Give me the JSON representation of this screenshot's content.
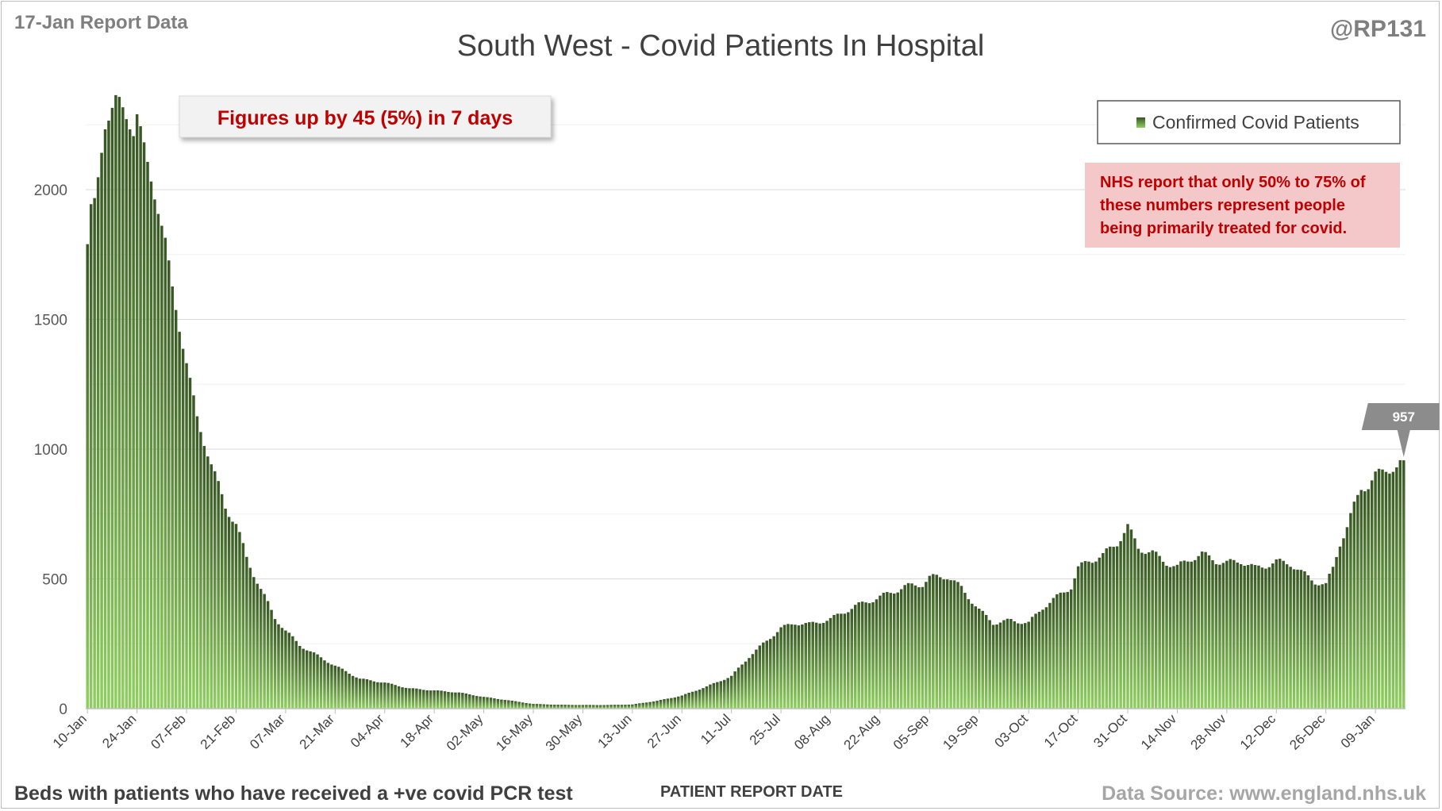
{
  "report_label": "17-Jan Report Data",
  "handle": "@RP131",
  "footer": {
    "left": "Beds with patients who have received a +ve covid PCR test",
    "source": "Data Source: www.england.nhs.uk"
  },
  "annotation": "Figures up by 45 (5%) in 7 days",
  "note_lines": [
    "NHS report that only 50% to 75% of",
    "these numbers represent people",
    "being primarily treated for covid."
  ],
  "callout": "957",
  "colors": {
    "bar_dark": "#375623",
    "bar_light": "#8fcf5f",
    "annotation": "#c00000",
    "note_bg": "#f4c7c9",
    "callout_bg": "#8c8c8c"
  },
  "chart_data": {
    "type": "bar",
    "title": "South West - Covid Patients In Hospital",
    "xlabel": "PATIENT REPORT DATE",
    "ylabel": "",
    "ylim": [
      0,
      2400
    ],
    "yticks": [
      0,
      500,
      1000,
      1500,
      2000
    ],
    "grid": true,
    "legend_position": "top-right",
    "x_start": "2021-01-10",
    "x_end": "2022-01-17",
    "xtick_labels": [
      "10-Jan",
      "24-Jan",
      "07-Feb",
      "21-Feb",
      "07-Mar",
      "21-Mar",
      "04-Apr",
      "18-Apr",
      "02-May",
      "16-May",
      "30-May",
      "13-Jun",
      "27-Jun",
      "11-Jul",
      "25-Jul",
      "08-Aug",
      "22-Aug",
      "05-Sep",
      "19-Sep",
      "03-Oct",
      "17-Oct",
      "31-Oct",
      "14-Nov",
      "28-Nov",
      "12-Dec",
      "26-Dec",
      "09-Jan"
    ],
    "series": [
      {
        "name": "Confirmed Covid Patients",
        "anchors": [
          [
            "2021-01-10",
            1790
          ],
          [
            "2021-01-11",
            1930
          ],
          [
            "2021-01-12",
            1950
          ],
          [
            "2021-01-13",
            2040
          ],
          [
            "2021-01-14",
            2150
          ],
          [
            "2021-01-15",
            2250
          ],
          [
            "2021-01-16",
            2280
          ],
          [
            "2021-01-18",
            2350
          ],
          [
            "2021-01-19",
            2340
          ],
          [
            "2021-01-21",
            2280
          ],
          [
            "2021-01-23",
            2220
          ],
          [
            "2021-01-24",
            2290
          ],
          [
            "2021-01-25",
            2230
          ],
          [
            "2021-01-27",
            2100
          ],
          [
            "2021-01-30",
            1920
          ],
          [
            "2021-02-01",
            1800
          ],
          [
            "2021-02-03",
            1620
          ],
          [
            "2021-02-05",
            1470
          ],
          [
            "2021-02-07",
            1330
          ],
          [
            "2021-02-10",
            1120
          ],
          [
            "2021-02-14",
            940
          ],
          [
            "2021-02-18",
            780
          ],
          [
            "2021-02-21",
            710
          ],
          [
            "2021-02-24",
            580
          ],
          [
            "2021-02-28",
            460
          ],
          [
            "2021-03-04",
            350
          ],
          [
            "2021-03-07",
            300
          ],
          [
            "2021-03-11",
            245
          ],
          [
            "2021-03-14",
            220
          ],
          [
            "2021-03-21",
            165
          ],
          [
            "2021-03-28",
            115
          ],
          [
            "2021-04-04",
            100
          ],
          [
            "2021-04-11",
            78
          ],
          [
            "2021-04-18",
            70
          ],
          [
            "2021-04-25",
            62
          ],
          [
            "2021-05-02",
            45
          ],
          [
            "2021-05-09",
            32
          ],
          [
            "2021-05-16",
            18
          ],
          [
            "2021-05-23",
            15
          ],
          [
            "2021-05-30",
            14
          ],
          [
            "2021-06-06",
            14
          ],
          [
            "2021-06-13",
            16
          ],
          [
            "2021-06-20",
            30
          ],
          [
            "2021-06-27",
            50
          ],
          [
            "2021-07-04",
            85
          ],
          [
            "2021-07-11",
            125
          ],
          [
            "2021-07-16",
            200
          ],
          [
            "2021-07-20",
            250
          ],
          [
            "2021-07-25",
            310
          ],
          [
            "2021-07-29",
            330
          ],
          [
            "2021-08-02",
            325
          ],
          [
            "2021-08-08",
            345
          ],
          [
            "2021-08-15",
            395
          ],
          [
            "2021-08-22",
            430
          ],
          [
            "2021-08-29",
            470
          ],
          [
            "2021-09-03",
            480
          ],
          [
            "2021-09-05",
            505
          ],
          [
            "2021-09-10",
            510
          ],
          [
            "2021-09-14",
            465
          ],
          [
            "2021-09-19",
            380
          ],
          [
            "2021-09-23",
            330
          ],
          [
            "2021-09-28",
            340
          ],
          [
            "2021-10-03",
            330
          ],
          [
            "2021-10-07",
            390
          ],
          [
            "2021-10-12",
            440
          ],
          [
            "2021-10-15",
            470
          ],
          [
            "2021-10-17",
            540
          ],
          [
            "2021-10-20",
            570
          ],
          [
            "2021-10-24",
            590
          ],
          [
            "2021-10-28",
            640
          ],
          [
            "2021-10-31",
            700
          ],
          [
            "2021-11-03",
            620
          ],
          [
            "2021-11-07",
            600
          ],
          [
            "2021-11-10",
            570
          ],
          [
            "2021-11-14",
            545
          ],
          [
            "2021-11-18",
            580
          ],
          [
            "2021-11-21",
            595
          ],
          [
            "2021-11-25",
            570
          ],
          [
            "2021-11-28",
            560
          ],
          [
            "2021-12-02",
            570
          ],
          [
            "2021-12-06",
            540
          ],
          [
            "2021-12-12",
            565
          ],
          [
            "2021-12-16",
            560
          ],
          [
            "2021-12-19",
            525
          ],
          [
            "2021-12-23",
            490
          ],
          [
            "2021-12-26",
            475
          ],
          [
            "2021-12-28",
            540
          ],
          [
            "2021-12-30",
            640
          ],
          [
            "2022-01-01",
            700
          ],
          [
            "2022-01-03",
            780
          ],
          [
            "2022-01-05",
            850
          ],
          [
            "2022-01-07",
            860
          ],
          [
            "2022-01-09",
            900
          ],
          [
            "2022-01-12",
            920
          ],
          [
            "2022-01-15",
            930
          ],
          [
            "2022-01-17",
            957
          ]
        ]
      }
    ]
  }
}
